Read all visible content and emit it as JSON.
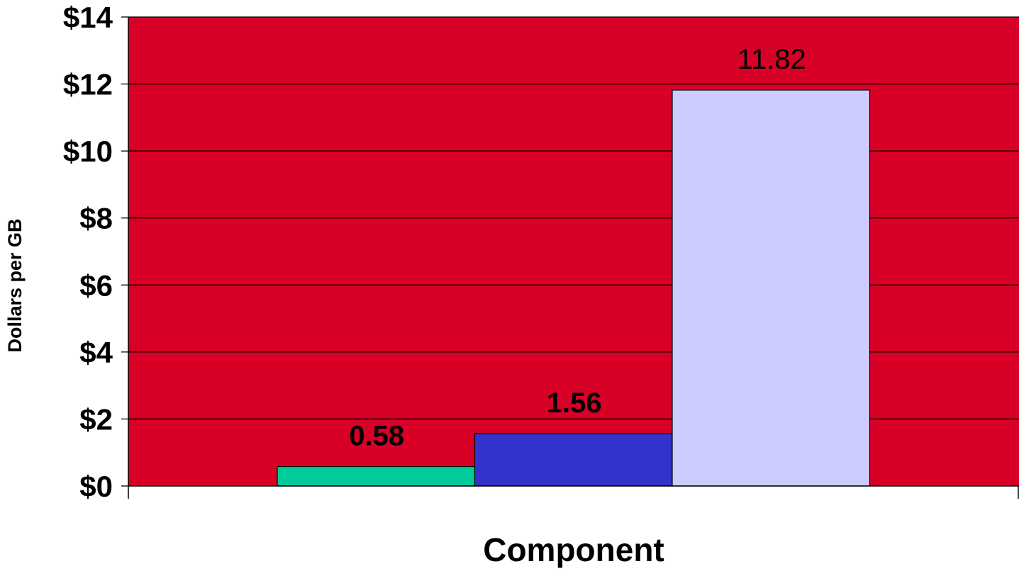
{
  "chart_data": {
    "type": "bar",
    "title": "",
    "xlabel": "Component",
    "ylabel": "Dollars per GB",
    "ylim": [
      0,
      14
    ],
    "ytick_step": 2,
    "ytick_prefix": "$",
    "grid": true,
    "legend": "none",
    "plot_background": "#D80027",
    "grid_color": "#000000",
    "series": [
      {
        "value": 0.58,
        "label": "0.58",
        "color": "#00CC99",
        "label_weight": "bold"
      },
      {
        "value": 1.56,
        "label": "1.56",
        "color": "#3333CC",
        "label_weight": "bold"
      },
      {
        "value": 11.82,
        "label": "11.82",
        "color": "#CCCCFF",
        "label_weight": "normal"
      }
    ]
  }
}
